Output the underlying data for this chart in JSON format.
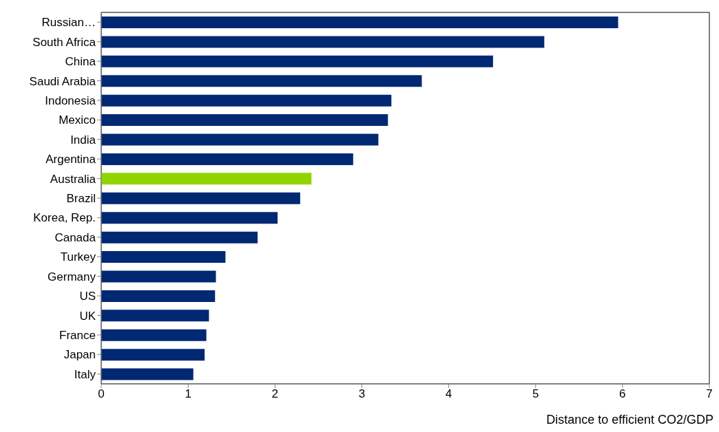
{
  "chart_data": {
    "type": "bar",
    "orientation": "horizontal",
    "xlabel": "Distance to efficient CO2/GDP",
    "categories": [
      "Russian…",
      "South Africa",
      "China",
      "Saudi Arabia",
      "Indonesia",
      "Mexico",
      "India",
      "Argentina",
      "Australia",
      "Brazil",
      "Korea, Rep.",
      "Canada",
      "Turkey",
      "Germany",
      "US",
      "UK",
      "France",
      "Japan",
      "Italy"
    ],
    "values": [
      5.95,
      5.1,
      4.51,
      3.69,
      3.34,
      3.3,
      3.19,
      2.9,
      2.42,
      2.29,
      2.03,
      1.8,
      1.43,
      1.32,
      1.31,
      1.24,
      1.21,
      1.19,
      1.06
    ],
    "colors": [
      "#002873",
      "#002873",
      "#002873",
      "#002873",
      "#002873",
      "#002873",
      "#002873",
      "#002873",
      "#92d400",
      "#002873",
      "#002873",
      "#002873",
      "#002873",
      "#002873",
      "#002873",
      "#002873",
      "#002873",
      "#002873",
      "#002873"
    ],
    "xlim": [
      0,
      7
    ],
    "xticks": [
      0,
      1,
      2,
      3,
      4,
      5,
      6,
      7
    ],
    "grid": false,
    "legend": false
  }
}
